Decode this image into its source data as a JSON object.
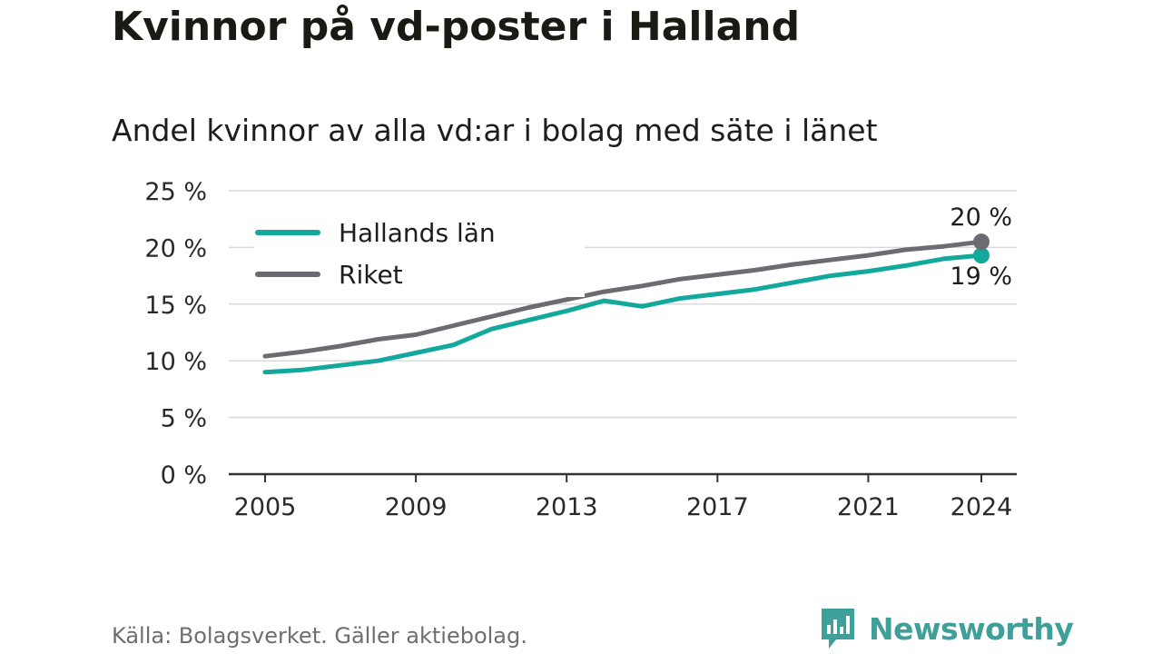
{
  "title": "Kvinnor på vd-poster i Halland",
  "subtitle": "Andel kvinnor av alla vd:ar i bolag med säte i länet",
  "source": "Källa: Bolagsverket. Gäller aktiebolag.",
  "brand": {
    "name": "Newsworthy",
    "icon": "newsworthy-logo-icon",
    "color": "#3f9f99"
  },
  "chart_data": {
    "type": "line",
    "title": "Kvinnor på vd-poster i Halland",
    "subtitle": "Andel kvinnor av alla vd:ar i bolag med säte i länet",
    "x": [
      2005,
      2006,
      2007,
      2008,
      2009,
      2010,
      2011,
      2012,
      2013,
      2014,
      2015,
      2016,
      2017,
      2018,
      2019,
      2020,
      2021,
      2022,
      2023,
      2024
    ],
    "x_ticks": [
      "2005",
      "2009",
      "2013",
      "2017",
      "2021",
      "2024"
    ],
    "y_ticks": [
      "0 %",
      "5 %",
      "10 %",
      "15 %",
      "20 %",
      "25 %"
    ],
    "ylim": [
      0,
      25
    ],
    "grid": true,
    "legend_position": "top-left",
    "series": [
      {
        "name": "Hallands län",
        "color": "#12a89b",
        "values": [
          9.0,
          9.2,
          9.6,
          10.0,
          10.7,
          11.4,
          12.8,
          13.6,
          14.4,
          15.3,
          14.8,
          15.5,
          15.9,
          16.3,
          16.9,
          17.5,
          17.9,
          18.4,
          19.0,
          19.3
        ],
        "end_label": "19 %"
      },
      {
        "name": "Riket",
        "color": "#6c6b72",
        "values": [
          10.4,
          10.8,
          11.3,
          11.9,
          12.3,
          13.1,
          13.9,
          14.7,
          15.4,
          16.1,
          16.6,
          17.2,
          17.6,
          18.0,
          18.5,
          18.9,
          19.3,
          19.8,
          20.1,
          20.5
        ],
        "end_label": "20 %"
      }
    ]
  }
}
